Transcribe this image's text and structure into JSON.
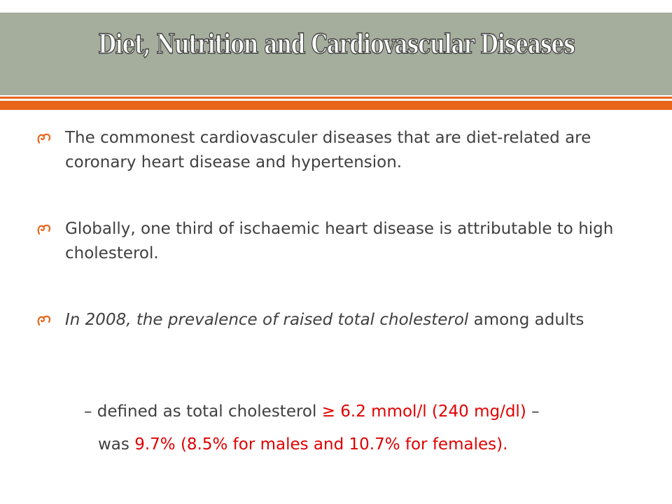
{
  "slide": {
    "title": "Diet, Nutrition and Cardiovascular Diseases",
    "bullets": [
      {
        "text": "The commonest cardiovasculer diseases that are diet-related are coronary heart disease and hypertension."
      },
      {
        "text": "Globally, one third of ischaemic heart disease is attributable to high cholesterol."
      },
      {
        "italic_text": "In 2008, the prevalence of raised total cholesterol",
        "normal_text": " among adults"
      }
    ],
    "definition_line": {
      "prefix": "– defined as total cholesterol ",
      "highlight": "≥ 6.2 mmol/l (240 mg/dl)",
      "suffix": " –"
    },
    "result_line": {
      "prefix": "was ",
      "highlight": "9.7% (8.5% for males and 10.7% for females)."
    },
    "colors": {
      "title_bar": "#a5ad9c",
      "accent_rule": "#e8661b",
      "body_text": "#404040",
      "highlight": "#e00000"
    },
    "icons": {
      "bullet": "hook-swirl-icon"
    }
  }
}
